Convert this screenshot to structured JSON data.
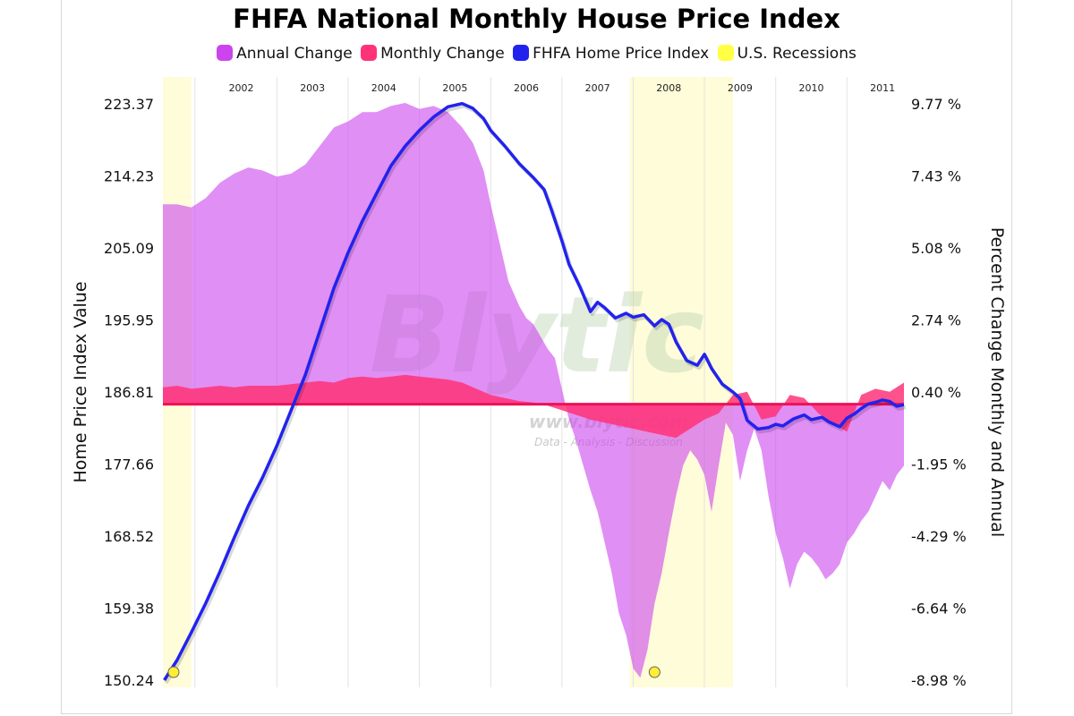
{
  "chart_data": {
    "type": "area",
    "title": "FHFA National Monthly House Price Index",
    "legend": [
      {
        "name": "Annual Change",
        "color": "#cc44ee"
      },
      {
        "name": "Monthly Change",
        "color": "#ff3377"
      },
      {
        "name": "FHFA Home Price Index",
        "color": "#2222ee"
      },
      {
        "name": "U.S. Recessions",
        "color": "#ffff44"
      }
    ],
    "legend_placement": "top-center",
    "x_years": [
      "2002",
      "2003",
      "2004",
      "2005",
      "2006",
      "2007",
      "2008",
      "2009",
      "2010",
      "2011"
    ],
    "x_range": [
      2001.4,
      2011.8
    ],
    "ylabel_left": "Home Price Index Value",
    "ylabel_right": "Percent Change Monthly and Annual",
    "yticks_left": [
      "223.37",
      "214.23",
      "205.09",
      "195.95",
      "186.81",
      "177.66",
      "168.52",
      "159.38",
      "150.24"
    ],
    "yticks_right": [
      "9.77 %",
      "7.43 %",
      "5.08 %",
      "2.74 %",
      "0.40 %",
      "-1.95 %",
      "-4.29 %",
      "-6.64 %",
      "-8.98 %"
    ],
    "ylim_left": [
      150.24,
      223.37
    ],
    "ylim_right": [
      -8.98,
      9.77
    ],
    "zero_line_right": 0,
    "recessions": [
      [
        2001.4,
        2001.8
      ],
      [
        2007.95,
        2009.4
      ]
    ],
    "grid": "vertical year gridlines",
    "watermark": {
      "main": "Blytic",
      "url": "www.blytic.com",
      "tagline": "Data - Analysis - Discussion"
    },
    "series": [
      {
        "name": "FHFA Home Price Index",
        "color": "#2222ee",
        "x": [
          2001.42,
          2001.6,
          2001.8,
          2002.0,
          2002.2,
          2002.4,
          2002.6,
          2002.8,
          2003.0,
          2003.2,
          2003.4,
          2003.6,
          2003.8,
          2004.0,
          2004.2,
          2004.4,
          2004.6,
          2004.8,
          2005.0,
          2005.2,
          2005.4,
          2005.6,
          2005.75,
          2005.9,
          2006.0,
          2006.2,
          2006.4,
          2006.6,
          2006.75,
          2006.85,
          2007.0,
          2007.1,
          2007.25,
          2007.4,
          2007.5,
          2007.6,
          2007.75,
          2007.9,
          2008.0,
          2008.15,
          2008.3,
          2008.4,
          2008.5,
          2008.6,
          2008.75,
          2008.9,
          2009.0,
          2009.1,
          2009.25,
          2009.4,
          2009.5,
          2009.6,
          2009.75,
          2009.9,
          2010.0,
          2010.1,
          2010.25,
          2010.4,
          2010.5,
          2010.65,
          2010.75,
          2010.9,
          2011.0,
          2011.1,
          2011.2,
          2011.3,
          2011.4,
          2011.5,
          2011.6,
          2011.7,
          2011.8
        ],
        "values": [
          150.24,
          152.8,
          156.3,
          160.0,
          164.0,
          168.3,
          172.4,
          176.0,
          180.0,
          184.5,
          189.0,
          194.5,
          200.0,
          204.5,
          208.5,
          212.0,
          215.5,
          218.0,
          220.0,
          221.7,
          223.0,
          223.4,
          222.8,
          221.5,
          220.0,
          218.0,
          215.8,
          214.0,
          212.5,
          210.0,
          206.0,
          203.0,
          200.2,
          197.0,
          198.2,
          197.5,
          196.2,
          196.8,
          196.3,
          196.6,
          195.2,
          196.0,
          195.4,
          193.2,
          190.8,
          190.2,
          191.6,
          189.8,
          187.8,
          186.8,
          186.0,
          183.2,
          182.1,
          182.3,
          182.7,
          182.5,
          183.4,
          183.9,
          183.3,
          183.6,
          183.0,
          182.4,
          183.5,
          184.0,
          184.7,
          185.3,
          185.5,
          185.8,
          185.6,
          185.0,
          185.2
        ]
      },
      {
        "name": "Annual Change",
        "color": "#cc44ee",
        "unit": "%",
        "x": [
          2001.4,
          2001.6,
          2001.8,
          2002.0,
          2002.2,
          2002.4,
          2002.6,
          2002.8,
          2003.0,
          2003.2,
          2003.4,
          2003.6,
          2003.8,
          2004.0,
          2004.2,
          2004.4,
          2004.6,
          2004.8,
          2005.0,
          2005.2,
          2005.4,
          2005.6,
          2005.75,
          2005.9,
          2006.0,
          2006.1,
          2006.25,
          2006.4,
          2006.5,
          2006.6,
          2006.7,
          2006.8,
          2006.9,
          2007.0,
          2007.1,
          2007.2,
          2007.3,
          2007.4,
          2007.5,
          2007.6,
          2007.7,
          2007.8,
          2007.9,
          2008.0,
          2008.1,
          2008.2,
          2008.3,
          2008.4,
          2008.5,
          2008.6,
          2008.7,
          2008.8,
          2008.9,
          2009.0,
          2009.1,
          2009.2,
          2009.3,
          2009.4,
          2009.5,
          2009.6,
          2009.7,
          2009.8,
          2009.9,
          2010.0,
          2010.1,
          2010.2,
          2010.3,
          2010.4,
          2010.5,
          2010.6,
          2010.7,
          2010.8,
          2010.9,
          2011.0,
          2011.1,
          2011.2,
          2011.3,
          2011.4,
          2011.5,
          2011.6,
          2011.7,
          2011.8
        ],
        "values": [
          6.5,
          6.5,
          6.4,
          6.7,
          7.2,
          7.5,
          7.7,
          7.6,
          7.4,
          7.5,
          7.8,
          8.4,
          9.0,
          9.2,
          9.5,
          9.5,
          9.7,
          9.8,
          9.6,
          9.7,
          9.5,
          9.0,
          8.5,
          7.6,
          6.5,
          5.5,
          4.0,
          3.2,
          2.8,
          2.6,
          2.2,
          1.8,
          1.5,
          0.5,
          -0.5,
          -1.2,
          -2.0,
          -2.8,
          -3.5,
          -4.5,
          -5.5,
          -6.8,
          -7.5,
          -8.6,
          -8.9,
          -8.0,
          -6.5,
          -5.5,
          -4.2,
          -3.0,
          -2.0,
          -1.5,
          -1.8,
          -2.3,
          -3.5,
          -2.0,
          -0.6,
          -1.0,
          -2.5,
          -1.5,
          -0.8,
          -1.5,
          -3.0,
          -4.2,
          -5.0,
          -6.0,
          -5.2,
          -4.8,
          -5.0,
          -5.3,
          -5.7,
          -5.5,
          -5.2,
          -4.5,
          -4.2,
          -3.8,
          -3.5,
          -3.0,
          -2.5,
          -2.8,
          -2.3,
          -2.0
        ]
      },
      {
        "name": "Monthly Change",
        "color": "#ff3377",
        "unit": "%",
        "x": [
          2001.4,
          2001.6,
          2001.8,
          2002.0,
          2002.2,
          2002.4,
          2002.6,
          2002.8,
          2003.0,
          2003.2,
          2003.4,
          2003.6,
          2003.8,
          2004.0,
          2004.2,
          2004.4,
          2004.6,
          2004.8,
          2005.0,
          2005.2,
          2005.4,
          2005.6,
          2005.8,
          2006.0,
          2006.2,
          2006.4,
          2006.6,
          2006.8,
          2007.0,
          2007.2,
          2007.4,
          2007.6,
          2007.8,
          2008.0,
          2008.2,
          2008.4,
          2008.6,
          2008.8,
          2009.0,
          2009.2,
          2009.4,
          2009.6,
          2009.8,
          2010.0,
          2010.2,
          2010.4,
          2010.6,
          2010.8,
          2011.0,
          2011.2,
          2011.4,
          2011.6,
          2011.8
        ],
        "values": [
          0.55,
          0.6,
          0.5,
          0.55,
          0.6,
          0.55,
          0.6,
          0.6,
          0.6,
          0.65,
          0.7,
          0.75,
          0.7,
          0.85,
          0.9,
          0.85,
          0.9,
          0.95,
          0.9,
          0.85,
          0.8,
          0.7,
          0.5,
          0.3,
          0.2,
          0.1,
          0.05,
          -0.05,
          -0.2,
          -0.35,
          -0.5,
          -0.6,
          -0.7,
          -0.8,
          -0.9,
          -1.0,
          -1.1,
          -0.8,
          -0.5,
          -0.3,
          0.3,
          0.4,
          -0.5,
          -0.4,
          0.3,
          0.2,
          -0.3,
          -0.6,
          -0.9,
          0.3,
          0.5,
          0.4,
          0.7
        ]
      }
    ]
  }
}
